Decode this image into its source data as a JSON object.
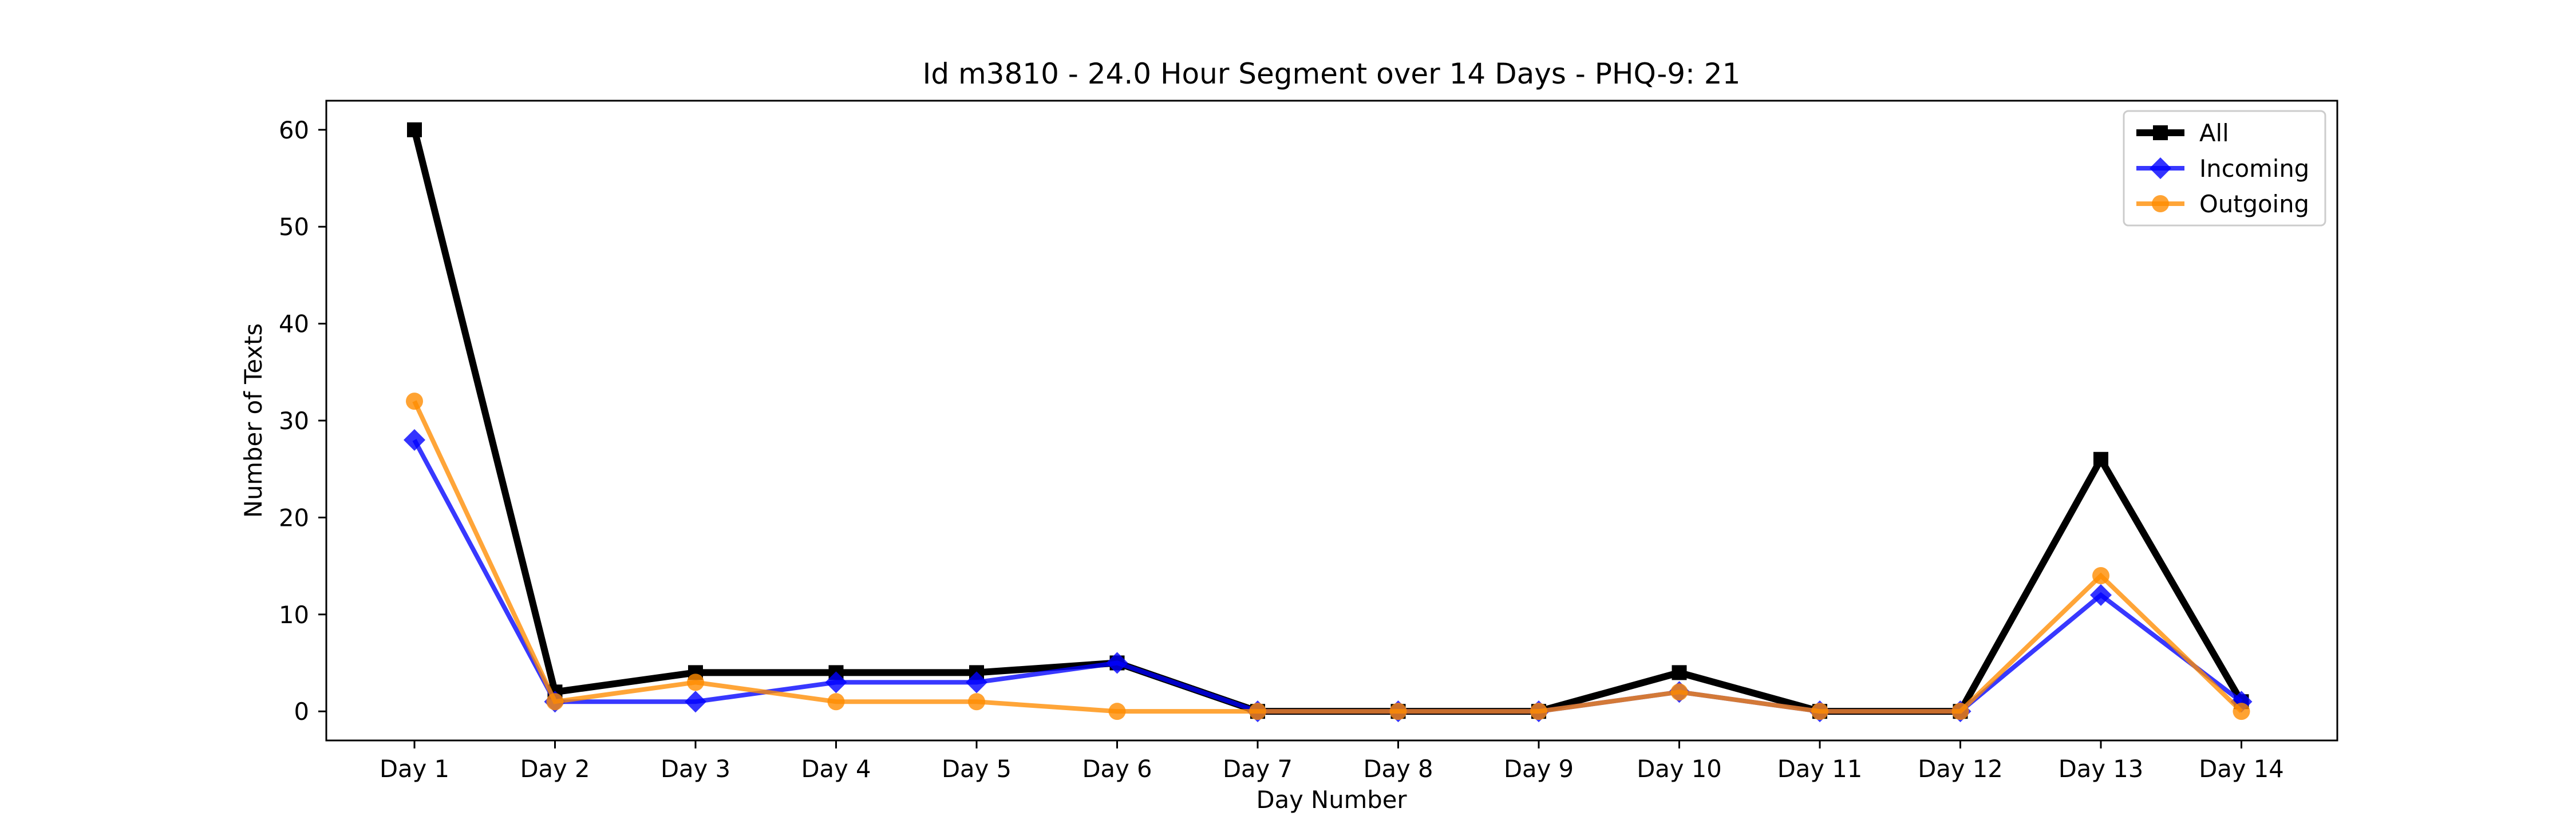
{
  "chart_data": {
    "type": "line",
    "title": "Id m3810 - 24.0 Hour Segment over 14 Days - PHQ-9: 21",
    "xlabel": "Day Number",
    "ylabel": "Number of Texts",
    "categories": [
      "Day 1",
      "Day 2",
      "Day 3",
      "Day 4",
      "Day 5",
      "Day 6",
      "Day 7",
      "Day 8",
      "Day 9",
      "Day 10",
      "Day 11",
      "Day 12",
      "Day 13",
      "Day 14"
    ],
    "yticks": [
      0,
      10,
      20,
      30,
      40,
      50,
      60
    ],
    "ylim": [
      -3,
      63
    ],
    "grid": false,
    "legend_position": "top-right",
    "series": [
      {
        "name": "All",
        "color": "#000000",
        "marker": "square",
        "values": [
          60,
          2,
          4,
          4,
          4,
          5,
          0,
          0,
          0,
          4,
          0,
          0,
          26,
          1
        ]
      },
      {
        "name": "Incoming",
        "color": "#0000ff",
        "marker": "diamond",
        "values": [
          28,
          1,
          1,
          3,
          3,
          5,
          0,
          0,
          0,
          2,
          0,
          0,
          12,
          1
        ]
      },
      {
        "name": "Outgoing",
        "color": "#ff8c00",
        "marker": "circle",
        "values": [
          32,
          1,
          3,
          1,
          1,
          0,
          0,
          0,
          0,
          2,
          0,
          0,
          14,
          0
        ]
      }
    ]
  }
}
